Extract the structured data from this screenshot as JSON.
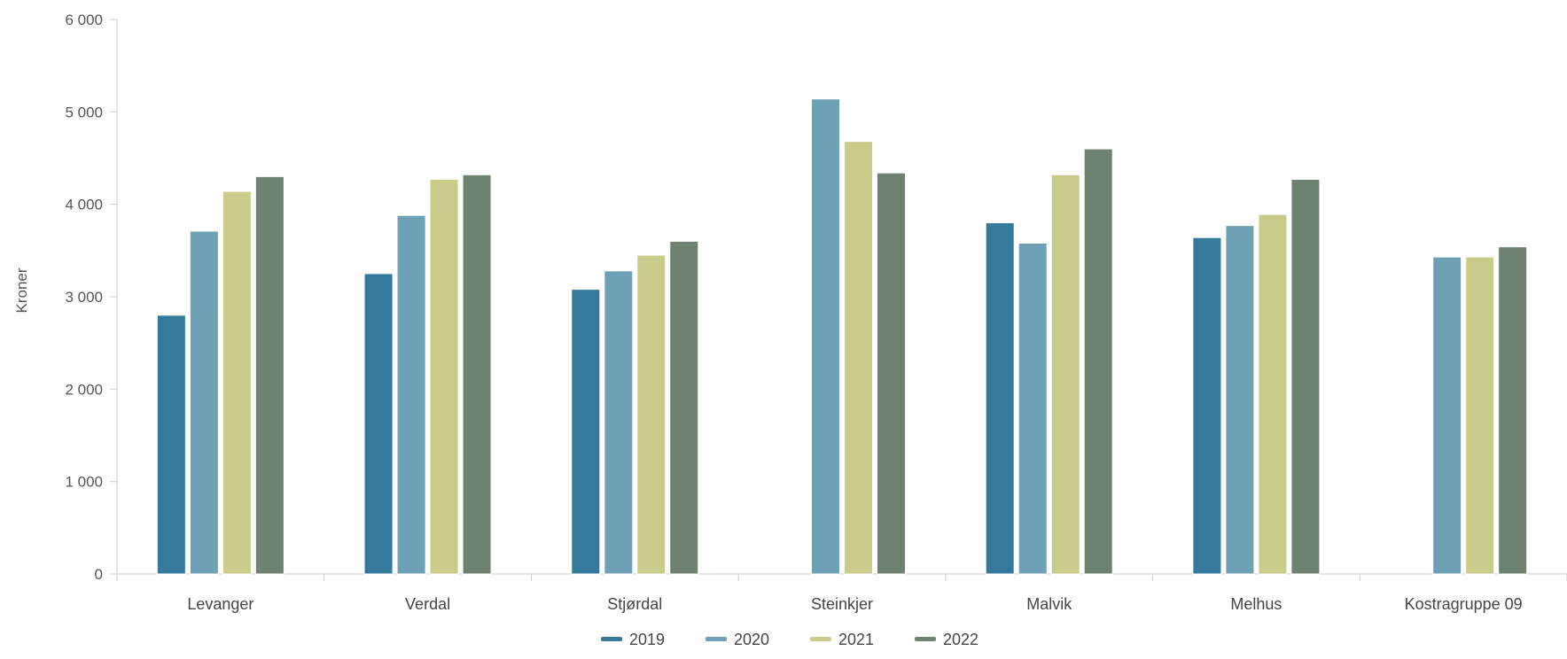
{
  "chart_data": {
    "type": "bar",
    "title": "",
    "xlabel": "",
    "ylabel": "Kroner",
    "ylim": [
      0,
      6000
    ],
    "yticks": [
      0,
      1000,
      2000,
      3000,
      4000,
      5000,
      6000
    ],
    "ytick_labels": [
      "0",
      "1 000",
      "2 000",
      "3 000",
      "4 000",
      "5 000",
      "6 000"
    ],
    "grid": false,
    "legend_position": "bottom",
    "categories": [
      "Levanger",
      "Verdal",
      "Stjørdal",
      "Steinkjer",
      "Malvik",
      "Melhus",
      "Kostragruppe 09"
    ],
    "series": [
      {
        "name": "2019",
        "color": "#35799b",
        "values": [
          2800,
          3250,
          3080,
          null,
          3800,
          3640,
          null
        ]
      },
      {
        "name": "2020",
        "color": "#6fa1b6",
        "values": [
          3710,
          3880,
          3280,
          5140,
          3580,
          3770,
          3430
        ]
      },
      {
        "name": "2021",
        "color": "#c9cb8b",
        "values": [
          4140,
          4270,
          3450,
          4680,
          4320,
          3890,
          3430
        ]
      },
      {
        "name": "2022",
        "color": "#6e8270",
        "values": [
          4300,
          4320,
          3600,
          4340,
          4600,
          4270,
          3540
        ]
      }
    ]
  }
}
